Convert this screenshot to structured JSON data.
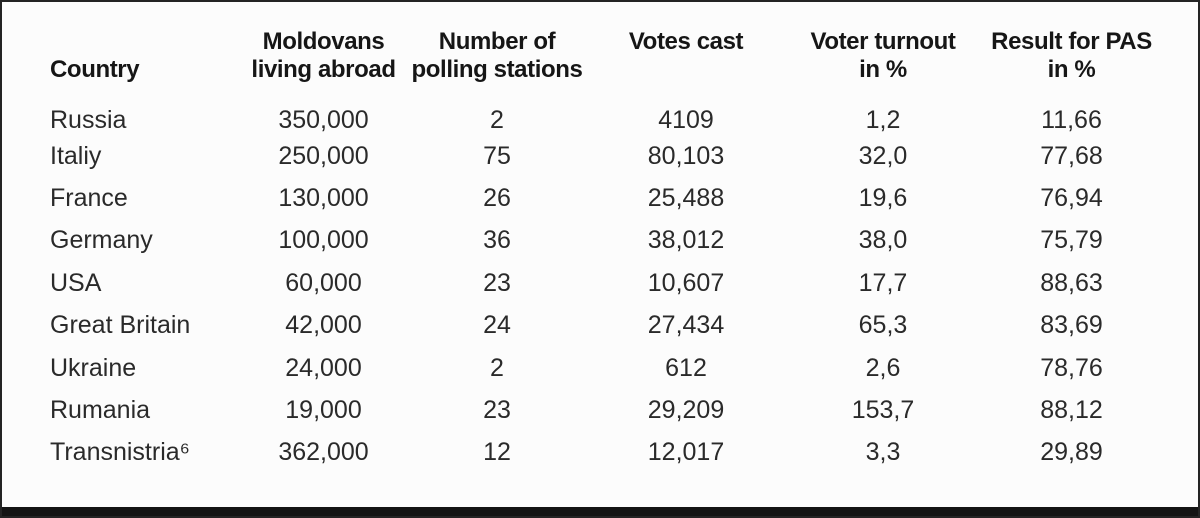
{
  "chart_data": {
    "type": "table",
    "title": "",
    "columns": [
      "Country",
      "Moldovans\nliving abroad",
      "Number of\npolling stations",
      "Votes cast",
      "Voter turnout\nin %",
      "Result for PAS\nin %"
    ],
    "rows": [
      [
        "Russia",
        "350,000",
        "2",
        "4109",
        "1,2",
        "11,66"
      ],
      [
        "Italiy",
        "250,000",
        "75",
        "80,103",
        "32,0",
        "77,68"
      ],
      [
        "France",
        "130,000",
        "26",
        "25,488",
        "19,6",
        "76,94"
      ],
      [
        "Germany",
        "100,000",
        "36",
        "38,012",
        "38,0",
        "75,79"
      ],
      [
        "USA",
        "60,000",
        "23",
        "10,607",
        "17,7",
        "88,63"
      ],
      [
        "Great Britain",
        "42,000",
        "24",
        "27,434",
        "65,3",
        "83,69"
      ],
      [
        "Ukraine",
        "24,000",
        "2",
        "612",
        "2,6",
        "78,76"
      ],
      [
        "Rumania",
        "19,000",
        "23",
        "29,209",
        "153,7",
        "88,12"
      ],
      [
        "Transnistria⁶",
        "362,000",
        "12",
        "12,017",
        "3,3",
        "29,89"
      ]
    ],
    "footnote_marker": "6"
  },
  "colors": {
    "background": "#fcfcfc",
    "frame_border": "#242424",
    "bottom_bar": "#141414",
    "header_text": "#161616",
    "body_text": "#2a2a2a"
  }
}
